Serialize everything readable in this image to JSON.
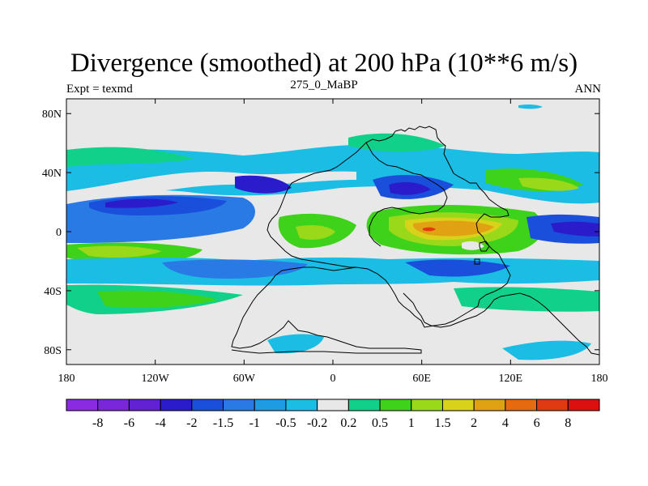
{
  "title": "Divergence (smoothed) at 200 hPa (10**6 m/s)",
  "experiment": "Expt = texmd",
  "period": "275_0_MaBP",
  "season": "ANN",
  "map": {
    "lon_range": [
      -180,
      180
    ],
    "lat_range": [
      -90,
      90
    ],
    "x_ticks": [
      {
        "value": -180,
        "label": "180"
      },
      {
        "value": -120,
        "label": "120W"
      },
      {
        "value": -60,
        "label": "60W"
      },
      {
        "value": 0,
        "label": "0"
      },
      {
        "value": 60,
        "label": "60E"
      },
      {
        "value": 120,
        "label": "120E"
      },
      {
        "value": 180,
        "label": "180"
      }
    ],
    "y_ticks": [
      {
        "value": 80,
        "label": "80N"
      },
      {
        "value": 40,
        "label": "40N"
      },
      {
        "value": 0,
        "label": "0"
      },
      {
        "value": -40,
        "label": "40S"
      },
      {
        "value": -80,
        "label": "80S"
      }
    ]
  },
  "colorbar": {
    "labels": [
      "-8",
      "-6",
      "-4",
      "-2",
      "-1.5",
      "-1",
      "-0.5",
      "-0.2",
      "0.2",
      "0.5",
      "1",
      "1.5",
      "2",
      "4",
      "6",
      "8"
    ],
    "colors": [
      "#8a2be2",
      "#7a27dc",
      "#6222d4",
      "#2a1ccb",
      "#1a4fdc",
      "#2a7ae6",
      "#1d9be3",
      "#1cbde4",
      "#e8e8e8",
      "#11d18a",
      "#3fd21b",
      "#9ad81a",
      "#d8d21a",
      "#e0a212",
      "#e66a10",
      "#e03a12",
      "#dd1010"
    ]
  }
}
